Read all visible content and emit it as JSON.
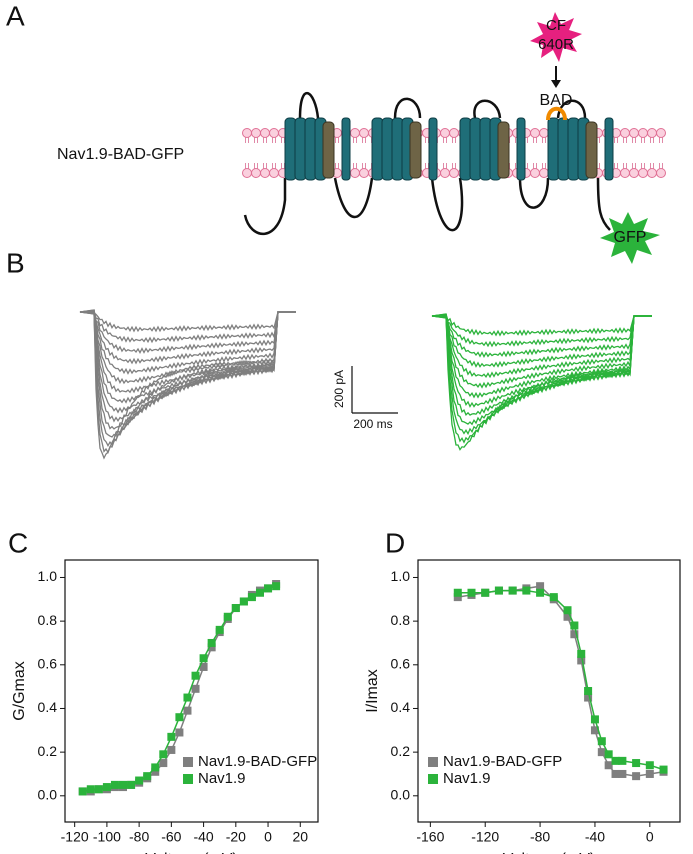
{
  "panel_a": {
    "label": "A",
    "construct": "Nav1.9-BAD-GFP",
    "dye": [
      "CF",
      "640R"
    ],
    "tag": "BAD",
    "fluor": "GFP"
  },
  "panel_b": {
    "label": "B",
    "scale_current": "200 pA",
    "scale_time": "200 ms"
  },
  "chart_data": [
    {
      "type": "scatter",
      "panel_label": "C",
      "x_label": "Voltage (mV)",
      "y_label": "G/Gmax",
      "x": [
        -115,
        -110,
        -105,
        -100,
        -95,
        -90,
        -85,
        -80,
        -75,
        -70,
        -65,
        -60,
        -55,
        -50,
        -45,
        -40,
        -35,
        -30,
        -25,
        -20,
        -15,
        -10,
        -5,
        0,
        5
      ],
      "series": [
        {
          "name": "Nav1.9-BAD-GFP",
          "color": "#7f7f7f",
          "values": [
            0.02,
            0.02,
            0.03,
            0.03,
            0.04,
            0.04,
            0.05,
            0.06,
            0.08,
            0.11,
            0.15,
            0.21,
            0.29,
            0.39,
            0.49,
            0.59,
            0.68,
            0.75,
            0.81,
            0.86,
            0.89,
            0.92,
            0.94,
            0.95,
            0.97
          ]
        },
        {
          "name": "Nav1.9",
          "color": "#2bb33b",
          "values": [
            0.02,
            0.03,
            0.03,
            0.04,
            0.05,
            0.05,
            0.05,
            0.07,
            0.09,
            0.13,
            0.19,
            0.27,
            0.36,
            0.45,
            0.55,
            0.63,
            0.7,
            0.76,
            0.82,
            0.86,
            0.89,
            0.91,
            0.93,
            0.95,
            0.96
          ]
        }
      ],
      "xlim": [
        -126,
        31
      ],
      "xticks": [
        -120,
        -100,
        -80,
        -60,
        -40,
        -20,
        0,
        20
      ],
      "ylim": [
        -0.12,
        1.08
      ],
      "yticks": [
        {
          "value": 0,
          "label": "0.0"
        },
        0.2,
        0.4,
        0.6,
        0.8,
        {
          "value": 1,
          "label": "1.0"
        }
      ],
      "legend": "lower right"
    },
    {
      "type": "scatter",
      "panel_label": "D",
      "x_label": "Voltage (mV)",
      "y_label": "I/Imax",
      "x": [
        -140,
        -130,
        -120,
        -110,
        -100,
        -90,
        -80,
        -70,
        -60,
        -55,
        -50,
        -45,
        -40,
        -35,
        -30,
        -25,
        -20,
        -10,
        0,
        10
      ],
      "series": [
        {
          "name": "Nav1.9-BAD-GFP",
          "color": "#7f7f7f",
          "values": [
            0.91,
            0.92,
            0.93,
            0.94,
            0.94,
            0.95,
            0.96,
            0.9,
            0.82,
            0.74,
            0.62,
            0.45,
            0.3,
            0.2,
            0.14,
            0.1,
            0.1,
            0.09,
            0.1,
            0.11
          ]
        },
        {
          "name": "Nav1.9",
          "color": "#2bb33b",
          "values": [
            0.93,
            0.93,
            0.93,
            0.94,
            0.94,
            0.94,
            0.93,
            0.91,
            0.85,
            0.78,
            0.65,
            0.48,
            0.35,
            0.25,
            0.19,
            0.16,
            0.16,
            0.15,
            0.14,
            0.12
          ]
        }
      ],
      "xlim": [
        -169,
        22
      ],
      "xticks": [
        -160,
        -120,
        -80,
        -40,
        0
      ],
      "ylim": [
        -0.12,
        1.08
      ],
      "yticks": [
        {
          "value": 0,
          "label": "0.0"
        },
        0.2,
        0.4,
        0.6,
        0.8,
        {
          "value": 1,
          "label": "1.0"
        }
      ],
      "legend": "lower left"
    }
  ]
}
